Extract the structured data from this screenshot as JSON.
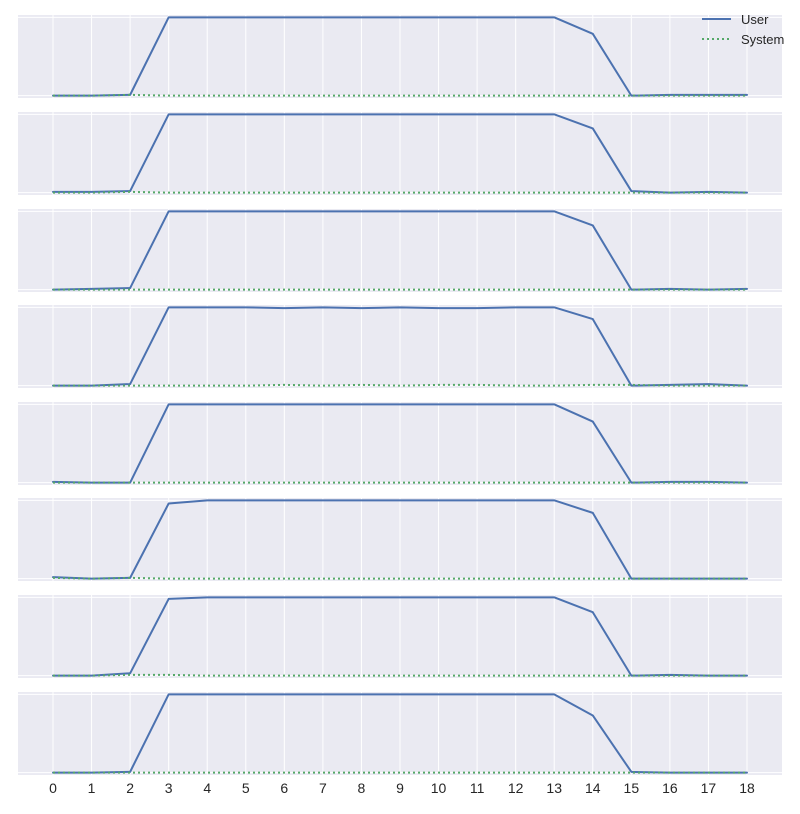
{
  "chart_data": {
    "type": "line",
    "layout": "vertically stacked small multiples sharing x axis",
    "x": [
      0,
      1,
      2,
      3,
      4,
      5,
      6,
      7,
      8,
      9,
      10,
      11,
      12,
      13,
      14,
      15,
      16,
      17,
      18
    ],
    "x_tick_labels": [
      "0",
      "1",
      "2",
      "3",
      "4",
      "5",
      "6",
      "7",
      "8",
      "9",
      "10",
      "11",
      "12",
      "13",
      "14",
      "15",
      "16",
      "17",
      "18"
    ],
    "ylim": [
      -0.03,
      1.03
    ],
    "grid": true,
    "legend": {
      "placement": "top-right",
      "entries": [
        "User",
        "System"
      ]
    },
    "colors": {
      "User": "#4c72b0",
      "System": "#55a868",
      "panel_background": "#eaeaf2",
      "grid": "#ffffff"
    },
    "line_styles": {
      "User": "solid",
      "System": "dotted"
    },
    "panels": [
      {
        "series": [
          {
            "name": "User",
            "values": [
              0.0,
              0.0,
              0.01,
              1.0,
              1.0,
              1.0,
              1.0,
              1.0,
              1.0,
              1.0,
              1.0,
              1.0,
              1.0,
              1.0,
              0.79,
              0.0,
              0.01,
              0.01,
              0.01
            ]
          },
          {
            "name": "System",
            "values": [
              0.0,
              0.0,
              0.01,
              0.0,
              0.0,
              0.0,
              0.0,
              0.0,
              0.0,
              0.0,
              0.0,
              0.0,
              0.0,
              0.0,
              0.0,
              0.0,
              0.0,
              0.0,
              0.0
            ]
          }
        ]
      },
      {
        "series": [
          {
            "name": "User",
            "values": [
              0.01,
              0.01,
              0.02,
              1.0,
              1.0,
              1.0,
              1.0,
              1.0,
              1.0,
              1.0,
              1.0,
              1.0,
              1.0,
              1.0,
              0.82,
              0.02,
              0.0,
              0.01,
              0.0
            ]
          },
          {
            "name": "System",
            "values": [
              0.0,
              0.0,
              0.01,
              0.0,
              0.0,
              0.0,
              0.0,
              0.0,
              0.0,
              0.0,
              0.0,
              0.0,
              0.0,
              0.0,
              0.0,
              0.0,
              0.0,
              0.0,
              0.0
            ]
          }
        ]
      },
      {
        "series": [
          {
            "name": "User",
            "values": [
              0.0,
              0.01,
              0.02,
              1.0,
              1.0,
              1.0,
              1.0,
              1.0,
              1.0,
              1.0,
              1.0,
              1.0,
              1.0,
              1.0,
              0.82,
              0.0,
              0.01,
              0.0,
              0.01
            ]
          },
          {
            "name": "System",
            "values": [
              0.0,
              0.0,
              0.0,
              0.0,
              0.0,
              0.0,
              0.0,
              0.0,
              0.0,
              0.0,
              0.0,
              0.0,
              0.0,
              0.0,
              0.0,
              0.0,
              0.0,
              0.0,
              0.0
            ]
          }
        ]
      },
      {
        "series": [
          {
            "name": "User",
            "values": [
              0.0,
              0.0,
              0.02,
              1.0,
              1.0,
              1.0,
              0.99,
              1.0,
              0.99,
              1.0,
              0.99,
              0.99,
              1.0,
              1.0,
              0.85,
              0.0,
              0.01,
              0.02,
              0.0
            ]
          },
          {
            "name": "System",
            "values": [
              0.0,
              0.0,
              0.0,
              0.0,
              0.0,
              0.0,
              0.01,
              0.0,
              0.01,
              0.0,
              0.01,
              0.01,
              0.0,
              0.0,
              0.01,
              0.01,
              0.0,
              0.0,
              0.0
            ]
          }
        ]
      },
      {
        "series": [
          {
            "name": "User",
            "values": [
              0.01,
              0.0,
              0.0,
              1.0,
              1.0,
              1.0,
              1.0,
              1.0,
              1.0,
              1.0,
              1.0,
              1.0,
              1.0,
              1.0,
              0.78,
              0.0,
              0.01,
              0.01,
              0.0
            ]
          },
          {
            "name": "System",
            "values": [
              0.0,
              0.0,
              0.0,
              0.0,
              0.0,
              0.0,
              0.0,
              0.0,
              0.0,
              0.0,
              0.0,
              0.0,
              0.0,
              0.0,
              0.0,
              0.0,
              0.0,
              0.0,
              0.0
            ]
          }
        ]
      },
      {
        "series": [
          {
            "name": "User",
            "values": [
              0.02,
              0.0,
              0.01,
              0.96,
              1.0,
              1.0,
              1.0,
              1.0,
              1.0,
              1.0,
              1.0,
              1.0,
              1.0,
              1.0,
              0.84,
              0.0,
              0.0,
              0.0,
              0.0
            ]
          },
          {
            "name": "System",
            "values": [
              0.01,
              0.0,
              0.01,
              0.0,
              0.0,
              0.0,
              0.0,
              0.0,
              0.0,
              0.0,
              0.0,
              0.0,
              0.0,
              0.0,
              0.0,
              0.0,
              0.0,
              0.0,
              0.0
            ]
          }
        ]
      },
      {
        "series": [
          {
            "name": "User",
            "values": [
              0.0,
              0.0,
              0.03,
              0.98,
              1.0,
              1.0,
              1.0,
              1.0,
              1.0,
              1.0,
              1.0,
              1.0,
              1.0,
              1.0,
              0.81,
              0.0,
              0.01,
              0.0,
              0.0
            ]
          },
          {
            "name": "System",
            "values": [
              0.0,
              0.0,
              0.01,
              0.01,
              0.0,
              0.0,
              0.0,
              0.0,
              0.0,
              0.0,
              0.0,
              0.0,
              0.0,
              0.0,
              0.0,
              0.0,
              0.0,
              0.0,
              0.0
            ]
          }
        ]
      },
      {
        "series": [
          {
            "name": "User",
            "values": [
              0.0,
              0.0,
              0.01,
              1.0,
              1.0,
              1.0,
              1.0,
              1.0,
              1.0,
              1.0,
              1.0,
              1.0,
              1.0,
              1.0,
              0.73,
              0.01,
              0.0,
              0.0,
              0.0
            ]
          },
          {
            "name": "System",
            "values": [
              0.0,
              0.0,
              0.0,
              0.0,
              0.0,
              0.0,
              0.0,
              0.0,
              0.0,
              0.0,
              0.0,
              0.0,
              0.0,
              0.0,
              0.0,
              0.0,
              0.0,
              0.0,
              0.0
            ]
          }
        ]
      }
    ]
  }
}
